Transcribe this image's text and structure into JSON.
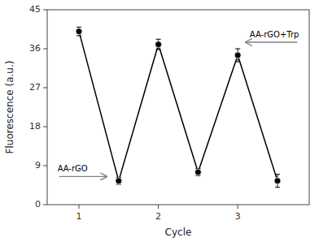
{
  "chart_data": {
    "type": "line",
    "xlabel": "Cycle",
    "ylabel": "Fluorescence (a.u.)",
    "x": [
      1.0,
      1.5,
      2.0,
      2.5,
      3.0,
      3.5
    ],
    "values": [
      40.0,
      5.5,
      37.0,
      7.5,
      34.5,
      5.5
    ],
    "errors": [
      1.0,
      0.8,
      1.2,
      0.8,
      1.5,
      1.5
    ],
    "color": "#000000",
    "marker": "circle",
    "xlim": [
      0.6,
      3.9
    ],
    "ylim": [
      0,
      45
    ],
    "xticks": [
      1,
      2,
      3
    ],
    "yticks": [
      0,
      9,
      18,
      27,
      36,
      45
    ],
    "grid": false,
    "annotations": [
      {
        "text": "AA-rGO",
        "x": 0.75,
        "x_end": 1.35,
        "y": 6.5
      },
      {
        "text": "AA-rGO+Trp",
        "x": 3.75,
        "x_end": 3.1,
        "y": 37.5
      }
    ]
  }
}
